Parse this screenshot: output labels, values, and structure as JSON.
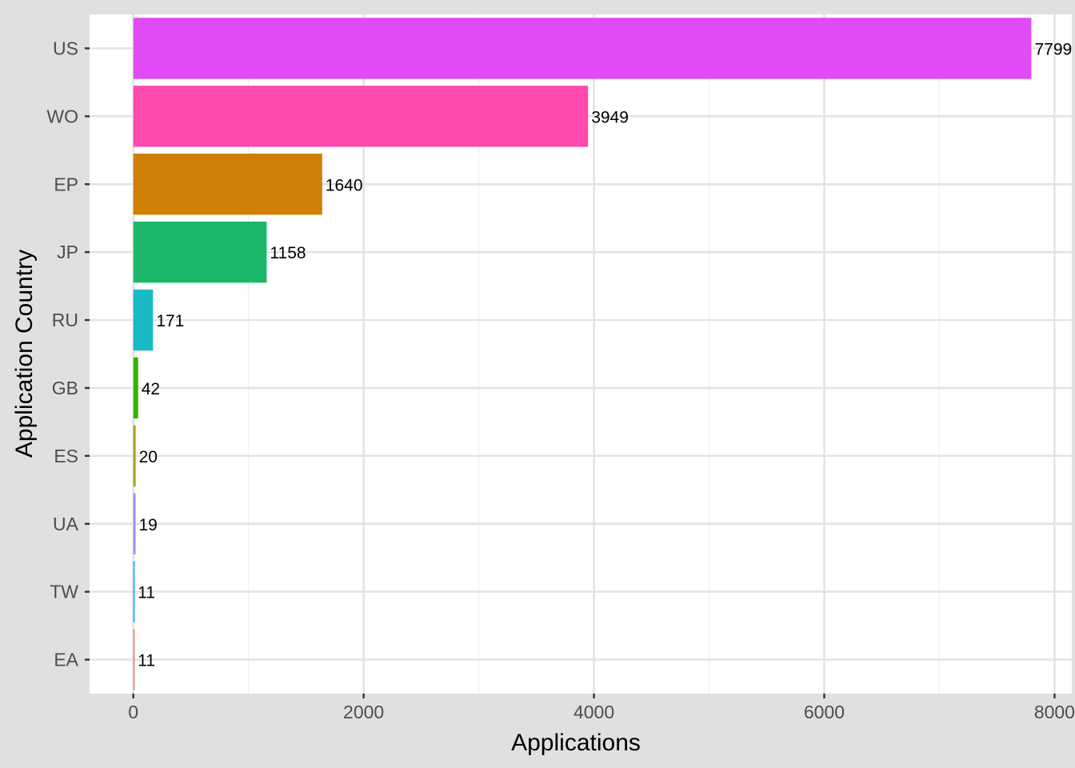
{
  "chart_data": {
    "type": "bar",
    "orientation": "horizontal",
    "title": "",
    "xlabel": "Applications",
    "ylabel": "Application Country",
    "xlim": [
      -380,
      8150
    ],
    "x_ticks": [
      0,
      2000,
      4000,
      6000,
      8000
    ],
    "grid": true,
    "legend": "none",
    "categories": [
      "US",
      "WO",
      "EP",
      "JP",
      "RU",
      "GB",
      "ES",
      "UA",
      "TW",
      "EA"
    ],
    "values": [
      7799,
      3949,
      1640,
      1158,
      171,
      42,
      20,
      19,
      11,
      11
    ],
    "data_labels": [
      "7799",
      "3949",
      "1640",
      "1158",
      "171",
      "42",
      "20",
      "19",
      "11",
      "11"
    ],
    "colors": [
      "#E04BF5",
      "#FF4AAD",
      "#CD7F06",
      "#1BB86C",
      "#19BAC5",
      "#36B205",
      "#A3A500",
      "#9590FF",
      "#00A9E6",
      "#F8766D"
    ]
  }
}
